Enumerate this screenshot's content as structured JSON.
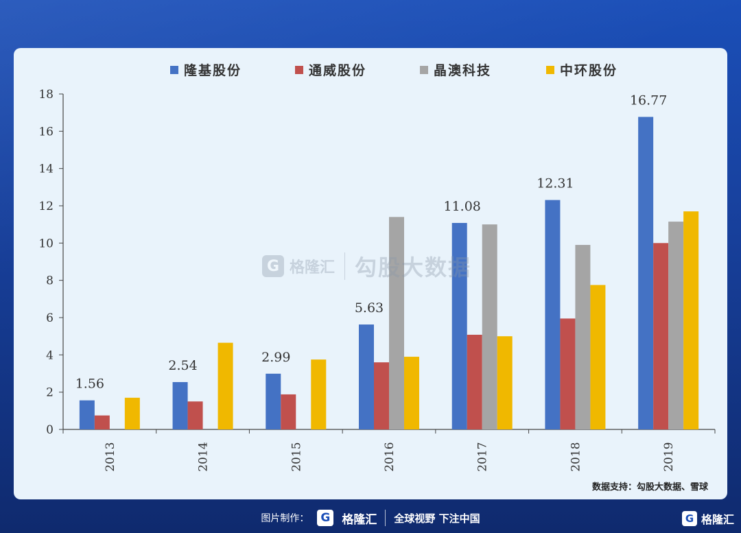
{
  "chart_data": {
    "type": "bar",
    "categories": [
      "2013",
      "2014",
      "2015",
      "2016",
      "2017",
      "2018",
      "2019"
    ],
    "series": [
      {
        "name": "隆基股份",
        "values": [
          1.56,
          2.54,
          2.99,
          5.63,
          11.08,
          12.31,
          16.77
        ]
      },
      {
        "name": "通威股份",
        "values": [
          0.75,
          1.5,
          1.88,
          3.6,
          5.08,
          5.95,
          10.0
        ]
      },
      {
        "name": "晶澳科技",
        "values": [
          0,
          0,
          0,
          11.4,
          11.0,
          9.9,
          11.15
        ]
      },
      {
        "name": "中环股份",
        "values": [
          1.7,
          4.65,
          3.75,
          3.9,
          5.0,
          7.75,
          11.7
        ]
      }
    ],
    "data_labels": {
      "series": 0,
      "values": [
        "1.56",
        "2.54",
        "2.99",
        "5.63",
        "11.08",
        "12.31",
        "16.77"
      ]
    },
    "ylim": [
      0,
      18
    ],
    "yticks": [
      0,
      2,
      4,
      6,
      8,
      10,
      12,
      14,
      16,
      18
    ],
    "legend_position": "top",
    "grid": false
  },
  "colors": {
    "series": [
      "#4472c4",
      "#c0504d",
      "#a5a5a5",
      "#f0b800"
    ]
  },
  "source": "数据支持：勾股大数据、雪球",
  "watermark": {
    "logo": "G",
    "brand": "格隆汇",
    "name": "勾股大数据"
  },
  "footer": {
    "label": "图片制作：",
    "logo": "G",
    "brand": "格隆汇",
    "slogan": "全球视野 下注中国"
  },
  "corner": {
    "logo": "G",
    "brand": "格隆汇"
  }
}
